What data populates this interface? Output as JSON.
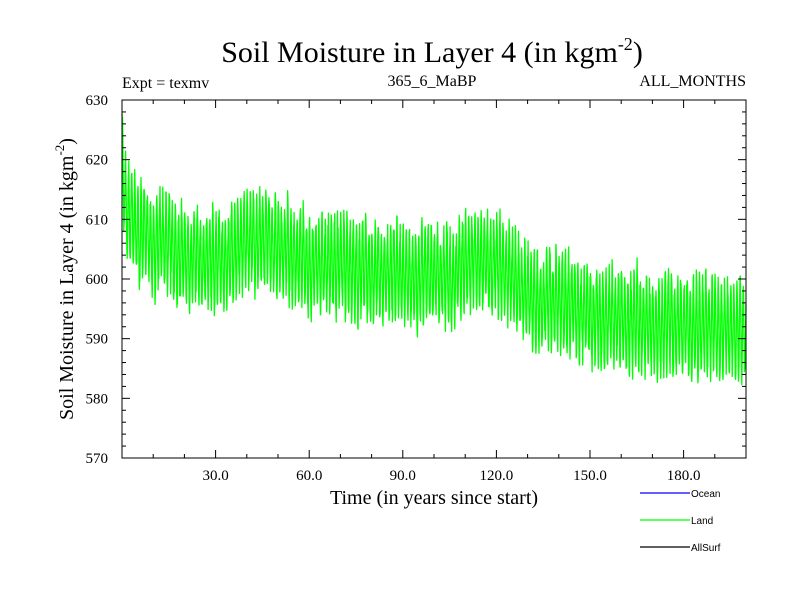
{
  "chart_data": {
    "type": "line",
    "title": "Soil Moisture in Layer 4 (in kgm",
    "title_sup": "-2",
    "title_close": ")",
    "subtitle_left": "Expt = texmv",
    "subtitle_center": "365_6_MaBP",
    "subtitle_right": "ALL_MONTHS",
    "xlabel": "Time (in years since start)",
    "ylabel": "Soil Moisture in Layer 4 (in kgm",
    "ylabel_sup": "-2",
    "ylabel_close": ")",
    "xlim": [
      0,
      200
    ],
    "ylim": [
      570,
      630
    ],
    "x_ticks": [
      {
        "value": 30,
        "label": "30.0"
      },
      {
        "value": 60,
        "label": "60.0"
      },
      {
        "value": 90,
        "label": "90.0"
      },
      {
        "value": 120,
        "label": "120.0"
      },
      {
        "value": 150,
        "label": "150.0"
      },
      {
        "value": 180,
        "label": "180.0"
      }
    ],
    "y_ticks": [
      {
        "value": 570,
        "label": "570"
      },
      {
        "value": 580,
        "label": "580"
      },
      {
        "value": 590,
        "label": "590"
      },
      {
        "value": 600,
        "label": "600"
      },
      {
        "value": 610,
        "label": "610"
      },
      {
        "value": 620,
        "label": "620"
      },
      {
        "value": 630,
        "label": "630"
      }
    ],
    "series": [
      {
        "name": "Ocean",
        "color": "#0000ff",
        "values": []
      },
      {
        "name": "Land",
        "color": "#00ff00",
        "sampling": "monthly",
        "trend_years": [
          0,
          5,
          10,
          15,
          20,
          30,
          40,
          45,
          50,
          60,
          70,
          80,
          90,
          100,
          110,
          120,
          125,
          130,
          140,
          150,
          160,
          170,
          180,
          190,
          200
        ],
        "trend_centers": [
          612,
          608,
          606,
          605,
          603,
          603,
          606,
          607,
          605,
          603,
          602,
          601,
          601,
          600,
          602,
          603,
          600,
          597,
          596,
          594,
          593,
          593,
          592,
          592,
          591
        ],
        "seasonal_amplitude": 7.5
      },
      {
        "name": "AllSurf",
        "color": "#000000",
        "values": []
      }
    ],
    "legend": [
      "Ocean",
      "Land",
      "AllSurf"
    ],
    "legend_position": "bottom-right"
  }
}
